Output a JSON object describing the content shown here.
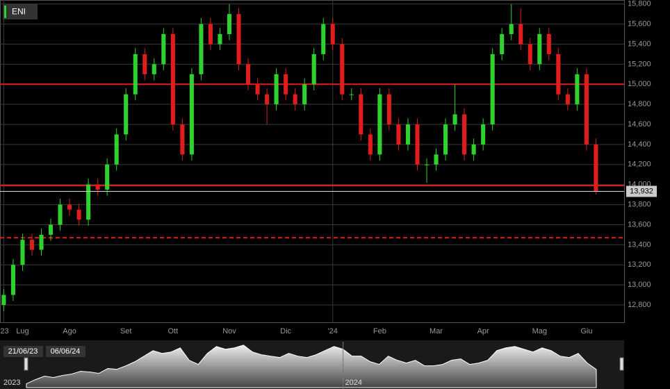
{
  "chart_data": {
    "type": "candlestick",
    "title": "ENI",
    "up_color": "#2fd12f",
    "down_color": "#e01c1c",
    "open": [
      12800,
      12900,
      13200,
      13450,
      13350,
      13500,
      13600,
      13800,
      13750,
      13650,
      14000,
      13950,
      14200,
      14500,
      14900,
      15300,
      15100,
      15200,
      15500,
      14600,
      14300,
      15100,
      15600,
      15400,
      15500,
      15700,
      15200,
      15000,
      14900,
      14800,
      15100,
      14900,
      14800,
      15000,
      15300,
      15600,
      15400,
      14900,
      14900,
      14500,
      14300,
      14900,
      14600,
      14400,
      14600,
      14200,
      14200,
      14300,
      14600,
      14700,
      14300,
      14400,
      14600,
      15300,
      15500,
      15600,
      15400,
      15200,
      15500,
      15300,
      14900,
      14800,
      15100,
      14400
    ],
    "high": [
      12960,
      13260,
      13510,
      13510,
      13560,
      13660,
      13860,
      13860,
      13810,
      14060,
      14060,
      14260,
      14560,
      14960,
      15360,
      15360,
      15260,
      15560,
      15560,
      14660,
      15160,
      15660,
      15660,
      15560,
      15800,
      15760,
      15260,
      15060,
      14960,
      15160,
      15160,
      14960,
      15060,
      15360,
      15660,
      15660,
      15460,
      14960,
      14960,
      14560,
      14960,
      14960,
      14660,
      14660,
      14660,
      14260,
      14360,
      14660,
      15000,
      14760,
      14460,
      14660,
      15360,
      15560,
      15800,
      15760,
      15460,
      15560,
      15560,
      15360,
      14960,
      15160,
      15160,
      14460
    ],
    "low": [
      12740,
      12840,
      13140,
      13290,
      13290,
      13440,
      13540,
      13690,
      13590,
      13590,
      13890,
      13890,
      14140,
      14440,
      14840,
      15040,
      15040,
      15140,
      14540,
      14240,
      14240,
      15040,
      15340,
      15340,
      15440,
      15140,
      14940,
      14840,
      14600,
      14740,
      14840,
      14740,
      14740,
      14940,
      15240,
      15340,
      14840,
      14840,
      14440,
      14240,
      14240,
      14540,
      14340,
      14340,
      14140,
      14020,
      14140,
      14240,
      14540,
      14240,
      14240,
      14340,
      14540,
      15240,
      15440,
      15340,
      15140,
      15140,
      15240,
      14840,
      14740,
      14740,
      14340,
      13900
    ],
    "close": [
      12900,
      13200,
      13450,
      13350,
      13500,
      13600,
      13800,
      13750,
      13650,
      14000,
      13950,
      14200,
      14500,
      14900,
      15300,
      15100,
      15200,
      15500,
      14600,
      14300,
      15100,
      15600,
      15400,
      15500,
      15700,
      15200,
      15000,
      14900,
      14800,
      15100,
      14900,
      14800,
      15000,
      15300,
      15600,
      15400,
      14900,
      14900,
      14500,
      14300,
      14900,
      14600,
      14400,
      14600,
      14200,
      14200,
      14300,
      14600,
      14700,
      14300,
      14400,
      14600,
      15300,
      15500,
      15600,
      15400,
      15200,
      15500,
      15300,
      14900,
      14800,
      15100,
      14400,
      13932
    ],
    "xlim": [
      -0.4,
      66
    ],
    "xticks": [
      {
        "value": 0,
        "label": "'23"
      },
      {
        "value": 2,
        "label": "Lug"
      },
      {
        "value": 7,
        "label": "Ago"
      },
      {
        "value": 13,
        "label": "Set"
      },
      {
        "value": 18,
        "label": "Ott"
      },
      {
        "value": 24,
        "label": "Nov"
      },
      {
        "value": 30,
        "label": "Dic"
      },
      {
        "value": 35,
        "label": "'24"
      },
      {
        "value": 40,
        "label": "Feb"
      },
      {
        "value": 46,
        "label": "Mar"
      },
      {
        "value": 51,
        "label": "Apr"
      },
      {
        "value": 57,
        "label": "Mag"
      },
      {
        "value": 62,
        "label": "Giu"
      }
    ],
    "ylim": [
      12620,
      15840
    ],
    "yticks": [
      {
        "value": 12800,
        "label": "12,800"
      },
      {
        "value": 13000,
        "label": "13,000"
      },
      {
        "value": 13200,
        "label": "13,200"
      },
      {
        "value": 13400,
        "label": "13,400"
      },
      {
        "value": 13600,
        "label": "13,600"
      },
      {
        "value": 13800,
        "label": "13,800"
      },
      {
        "value": 14000,
        "label": "14,000"
      },
      {
        "value": 14200,
        "label": "14,200"
      },
      {
        "value": 14400,
        "label": "14,400"
      },
      {
        "value": 14600,
        "label": "14,600"
      },
      {
        "value": 14800,
        "label": "14,800"
      },
      {
        "value": 15000,
        "label": "15,000"
      },
      {
        "value": 15200,
        "label": "15,200"
      },
      {
        "value": 15400,
        "label": "15,400"
      },
      {
        "value": 15600,
        "label": "15,600"
      },
      {
        "value": 15800,
        "label": "15,800"
      }
    ],
    "grid": true,
    "levels": [
      {
        "value": 15000,
        "style": "solid",
        "color": "#e01c1c"
      },
      {
        "value": 13990,
        "style": "solid",
        "color": "#e01c1c"
      },
      {
        "value": 13470,
        "style": "dashed",
        "color": "#e01c1c"
      }
    ],
    "last_price": {
      "value": 13932,
      "label": "13,932"
    },
    "navigator": {
      "start": "21/06/23",
      "end": "06/06/24",
      "years": [
        {
          "value": 0,
          "label": "2023"
        },
        {
          "value": 35,
          "label": "2024"
        }
      ]
    }
  }
}
